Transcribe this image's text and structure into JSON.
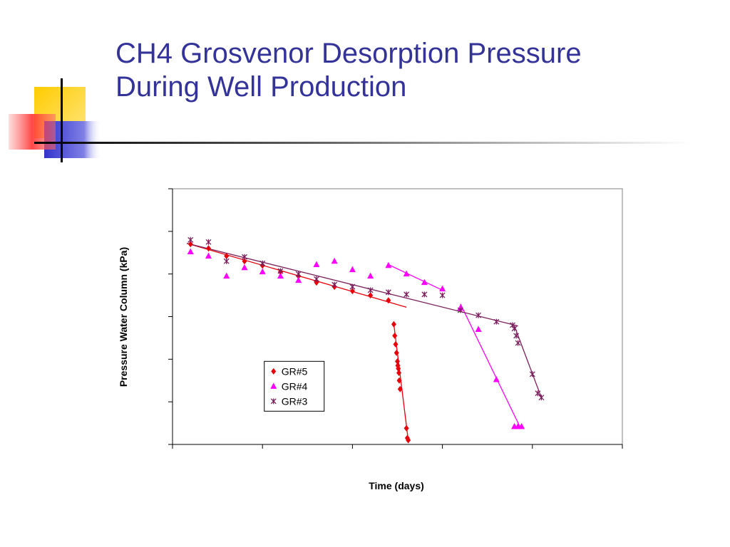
{
  "slide": {
    "title_line1": "CH4 Grosvenor Desorption Pressure",
    "title_line2": "During Well Production"
  },
  "colors": {
    "title": "#333399",
    "deco_yellow": "#ffcc00",
    "deco_blue": "#3333cc",
    "deco_red": "#ff3333",
    "gr5": "#e8000b",
    "gr4": "#ff00ff",
    "gr3": "#7a1f5c"
  },
  "chart_data": {
    "type": "scatter",
    "title": "",
    "xlabel": "Time (days)",
    "ylabel": "Pressure Water Column (kPa)",
    "xlim": [
      0,
      25
    ],
    "ylim": [
      0,
      6
    ],
    "xticks": [
      0,
      5,
      10,
      15,
      20,
      25
    ],
    "yticks": [
      0,
      1,
      2,
      3,
      4,
      5,
      6
    ],
    "tick_labels_shown": false,
    "grid": true,
    "legend": "lower-left",
    "series": [
      {
        "name": "GR#5",
        "marker": "diamond",
        "color": "#e8000b",
        "points": [
          [
            1.0,
            4.7
          ],
          [
            2.0,
            4.6
          ],
          [
            3.0,
            4.42
          ],
          [
            4.0,
            4.3
          ],
          [
            5.0,
            4.2
          ],
          [
            6.0,
            4.05
          ],
          [
            7.0,
            3.95
          ],
          [
            8.0,
            3.8
          ],
          [
            9.0,
            3.7
          ],
          [
            10.0,
            3.6
          ],
          [
            11.0,
            3.5
          ],
          [
            12.0,
            3.38
          ],
          [
            12.3,
            2.82
          ],
          [
            12.35,
            2.55
          ],
          [
            12.4,
            2.35
          ],
          [
            12.45,
            2.15
          ],
          [
            12.5,
            1.95
          ],
          [
            12.52,
            1.85
          ],
          [
            12.55,
            1.78
          ],
          [
            12.58,
            1.68
          ],
          [
            12.6,
            1.5
          ],
          [
            12.65,
            1.3
          ],
          [
            13.0,
            0.38
          ],
          [
            13.05,
            0.15
          ],
          [
            13.1,
            0.1
          ]
        ],
        "trend_lines": [
          [
            [
              0.8,
              4.72
            ],
            [
              13.0,
              3.22
            ]
          ],
          [
            [
              12.3,
              2.82
            ],
            [
              13.1,
              0.1
            ]
          ]
        ]
      },
      {
        "name": "GR#4",
        "marker": "triangle",
        "color": "#ff00ff",
        "points": [
          [
            1.0,
            4.52
          ],
          [
            2.0,
            4.42
          ],
          [
            3.0,
            3.95
          ],
          [
            4.0,
            4.15
          ],
          [
            5.0,
            4.05
          ],
          [
            6.0,
            3.95
          ],
          [
            7.0,
            3.85
          ],
          [
            8.0,
            4.22
          ],
          [
            9.0,
            4.3
          ],
          [
            10.0,
            4.1
          ],
          [
            11.0,
            3.95
          ],
          [
            12.0,
            4.2
          ],
          [
            13.0,
            4.0
          ],
          [
            14.0,
            3.8
          ],
          [
            15.0,
            3.65
          ],
          [
            16.0,
            3.2
          ],
          [
            17.0,
            2.7
          ],
          [
            18.0,
            1.52
          ],
          [
            19.0,
            0.42
          ],
          [
            19.2,
            0.42
          ],
          [
            19.4,
            0.42
          ]
        ],
        "trend_lines": [
          [
            [
              12.0,
              4.22
            ],
            [
              15.0,
              3.62
            ]
          ],
          [
            [
              16.0,
              3.3
            ],
            [
              19.3,
              0.42
            ]
          ]
        ]
      },
      {
        "name": "GR#3",
        "marker": "star",
        "color": "#7a1f5c",
        "points": [
          [
            1.0,
            4.8
          ],
          [
            2.0,
            4.75
          ],
          [
            3.0,
            4.3
          ],
          [
            4.0,
            4.4
          ],
          [
            5.0,
            4.25
          ],
          [
            6.0,
            4.07
          ],
          [
            7.0,
            4.0
          ],
          [
            8.0,
            3.88
          ],
          [
            9.0,
            3.75
          ],
          [
            10.0,
            3.7
          ],
          [
            11.0,
            3.62
          ],
          [
            12.0,
            3.57
          ],
          [
            13.0,
            3.52
          ],
          [
            14.0,
            3.52
          ],
          [
            15.0,
            3.5
          ],
          [
            16.0,
            3.15
          ],
          [
            17.0,
            3.03
          ],
          [
            18.0,
            2.88
          ],
          [
            18.9,
            2.8
          ],
          [
            19.0,
            2.72
          ],
          [
            19.1,
            2.55
          ],
          [
            19.2,
            2.38
          ],
          [
            20.0,
            1.65
          ],
          [
            20.3,
            1.2
          ],
          [
            20.5,
            1.1
          ]
        ],
        "trend_lines": [
          [
            [
              0.8,
              4.72
            ],
            [
              19.2,
              2.78
            ]
          ],
          [
            [
              19.0,
              2.78
            ],
            [
              20.5,
              1.1
            ]
          ]
        ]
      }
    ]
  }
}
